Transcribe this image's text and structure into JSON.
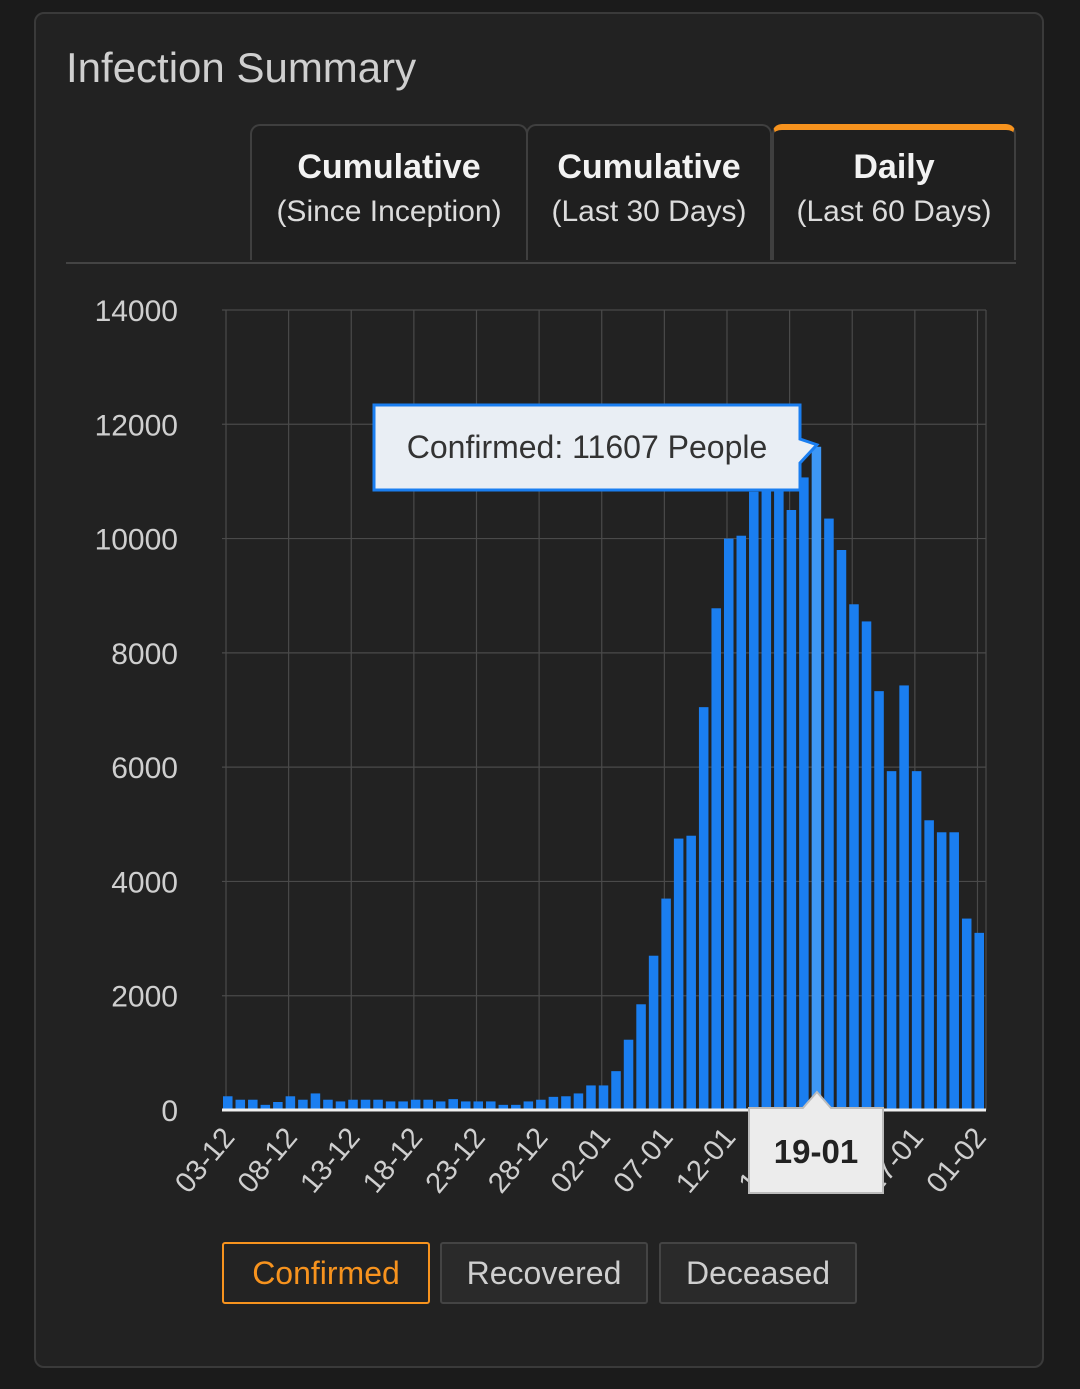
{
  "card": {
    "title": "Infection Summary"
  },
  "tabs": [
    {
      "line1": "Cumulative",
      "line2": "(Since Inception)",
      "active": false
    },
    {
      "line1": "Cumulative",
      "line2": "(Last 30 Days)",
      "active": false
    },
    {
      "line1": "Daily",
      "line2": "(Last 60 Days)",
      "active": true
    }
  ],
  "series_buttons": [
    {
      "label": "Confirmed",
      "active": true
    },
    {
      "label": "Recovered",
      "active": false
    },
    {
      "label": "Deceased",
      "active": false
    }
  ],
  "colors": {
    "accent": "#f7931e",
    "bar": "#1a7ef0",
    "bar_highlight": "#3d97f5"
  },
  "tooltip": {
    "text": "Confirmed: 11607 People",
    "x_label": "19-01"
  },
  "chart_data": {
    "type": "bar",
    "x_tick_labels": [
      "03-12",
      "08-12",
      "13-12",
      "18-12",
      "23-12",
      "28-12",
      "02-01",
      "07-01",
      "12-01",
      "17-01",
      "22-01",
      "27-01",
      "01-02"
    ],
    "ylim": [
      0,
      14000
    ],
    "y_ticks": [
      "0",
      "2000",
      "4000",
      "6000",
      "8000",
      "10000",
      "12000",
      "14000"
    ],
    "grid": true,
    "highlight_index": 47,
    "series": [
      {
        "values": [
          240,
          180,
          180,
          90,
          140,
          240,
          180,
          290,
          180,
          150,
          180,
          180,
          180,
          150,
          150,
          180,
          180,
          150,
          190,
          150,
          150,
          150,
          90,
          90,
          150,
          180,
          230,
          240,
          290,
          430,
          430,
          680,
          1230,
          1850,
          2700,
          3700,
          4750,
          4800,
          7050,
          8780,
          10000,
          10050,
          10820,
          11180,
          10950,
          10500,
          11070,
          11607,
          10350,
          9800,
          8850,
          8550,
          7330,
          5930,
          7430,
          5930,
          5070,
          4860,
          4860,
          3350,
          3100
        ]
      }
    ]
  }
}
